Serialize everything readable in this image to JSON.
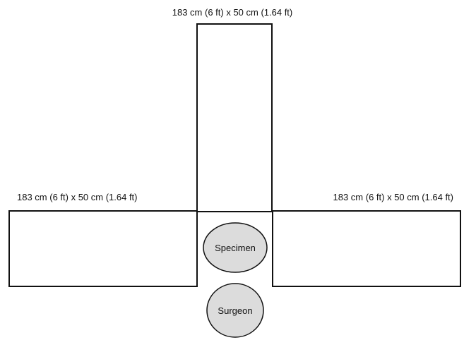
{
  "tables": {
    "top": {
      "dimension_label": "183 cm (6 ft) x 50 cm (1.64 ft)"
    },
    "left": {
      "dimension_label": "183 cm (6 ft) x 50 cm (1.64 ft)"
    },
    "right": {
      "dimension_label": "183 cm (6 ft) x 50 cm (1.64 ft)"
    }
  },
  "nodes": {
    "specimen": {
      "label": "Specimen"
    },
    "surgeon": {
      "label": "Surgeon"
    }
  },
  "colors": {
    "outline": "#111111",
    "node_fill": "#dcdcdc",
    "background": "#ffffff"
  }
}
